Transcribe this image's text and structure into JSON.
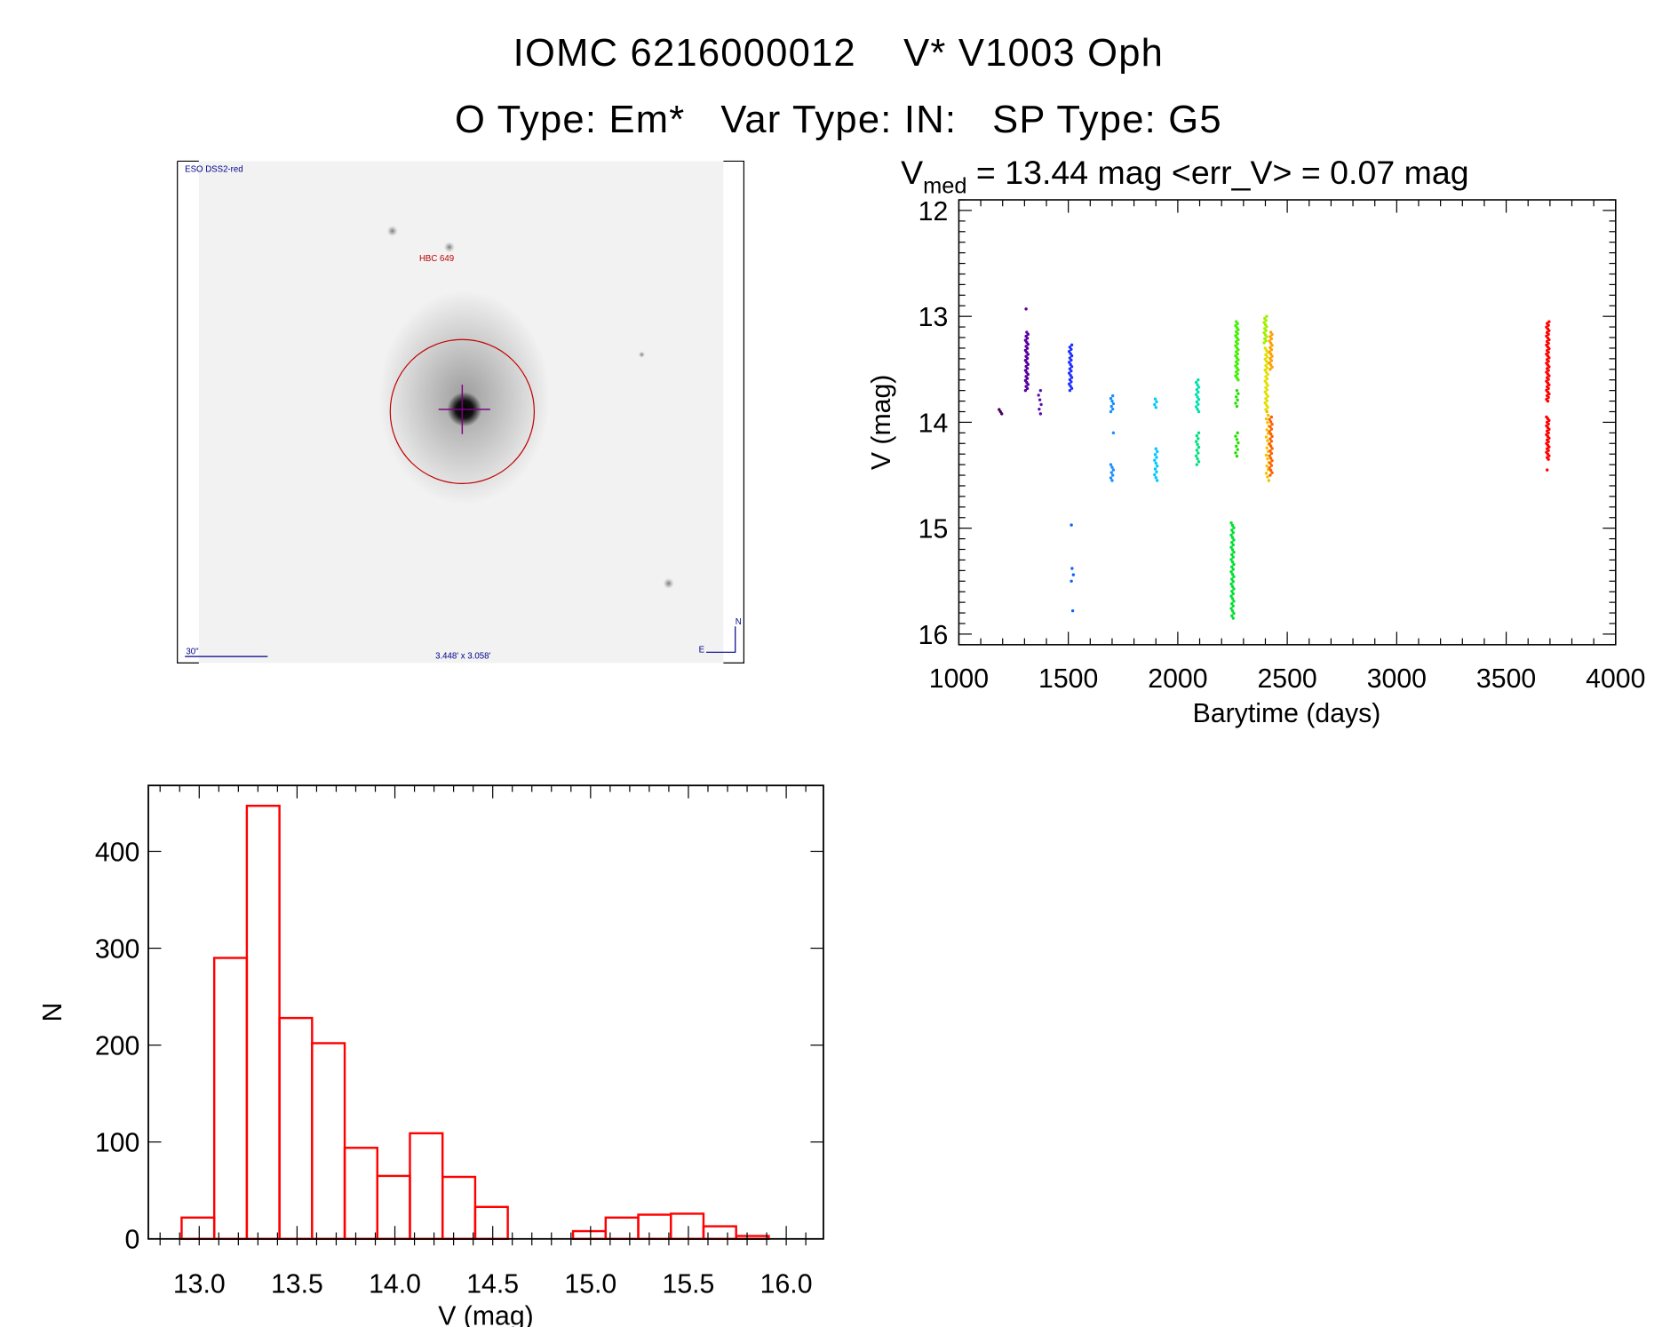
{
  "header": {
    "title_line1": "IOMC 6216000012    V* V1003 Oph",
    "title_line2": "O Type: Em*   Var Type: IN:   SP Type: G5"
  },
  "image_panel": {
    "survey_label": "ESO DSS2-red",
    "object_label": "HBC 649",
    "scale_label": "30\"",
    "field_size_label": "3.448' x 3.058'",
    "north_label": "N",
    "east_label": "E",
    "label_color": "#00008b",
    "marker_color": "#c00000"
  },
  "chart_data": [
    {
      "type": "scatter",
      "title_prefix": "V",
      "title_subscript": "med",
      "title_rest": " = 13.44 mag <err_V> = 0.07 mag",
      "xlabel": "Barytime (days)",
      "ylabel": "V (mag)",
      "xlim": [
        1000,
        4000
      ],
      "ylim": [
        16.1,
        11.9
      ],
      "y_inverted": true,
      "xticks": [
        1000,
        1500,
        2000,
        2500,
        3000,
        3500,
        4000
      ],
      "yticks": [
        12,
        13,
        14,
        15,
        16
      ],
      "grid": false,
      "segments": [
        {
          "t": 1190,
          "v_from": 13.88,
          "v_to": 13.92,
          "n": 3,
          "color": "#4b0060"
        },
        {
          "t": 1310,
          "v_from": 12.93,
          "v_to": 12.93,
          "n": 1,
          "color": "#5a00a0"
        },
        {
          "t": 1310,
          "v_from": 13.15,
          "v_to": 13.7,
          "n": 30,
          "color": "#5a00a0"
        },
        {
          "t": 1370,
          "v_from": 13.7,
          "v_to": 13.92,
          "n": 6,
          "color": "#5a10b0"
        },
        {
          "t": 1510,
          "v_from": 13.27,
          "v_to": 13.7,
          "n": 22,
          "color": "#2030ff"
        },
        {
          "t": 1520,
          "v_from": 14.97,
          "v_to": 14.97,
          "n": 1,
          "color": "#1060ff"
        },
        {
          "t": 1520,
          "v_from": 15.38,
          "v_to": 15.5,
          "n": 3,
          "color": "#1060ff"
        },
        {
          "t": 1520,
          "v_from": 15.78,
          "v_to": 15.78,
          "n": 1,
          "color": "#1060ff"
        },
        {
          "t": 1700,
          "v_from": 13.75,
          "v_to": 13.9,
          "n": 7,
          "color": "#1890ff"
        },
        {
          "t": 1700,
          "v_from": 14.1,
          "v_to": 14.1,
          "n": 1,
          "color": "#1890ff"
        },
        {
          "t": 1700,
          "v_from": 14.4,
          "v_to": 14.55,
          "n": 7,
          "color": "#1890ff"
        },
        {
          "t": 1900,
          "v_from": 13.78,
          "v_to": 13.86,
          "n": 4,
          "color": "#00c8ff"
        },
        {
          "t": 1900,
          "v_from": 14.25,
          "v_to": 14.55,
          "n": 12,
          "color": "#00c8ff"
        },
        {
          "t": 2090,
          "v_from": 13.6,
          "v_to": 13.9,
          "n": 14,
          "color": "#00e0b0"
        },
        {
          "t": 2090,
          "v_from": 14.1,
          "v_to": 14.4,
          "n": 12,
          "color": "#00e080"
        },
        {
          "t": 2250,
          "v_from": 14.95,
          "v_to": 15.85,
          "n": 40,
          "color": "#00e030"
        },
        {
          "t": 2270,
          "v_from": 13.05,
          "v_to": 13.6,
          "n": 30,
          "color": "#40f000"
        },
        {
          "t": 2270,
          "v_from": 13.7,
          "v_to": 13.85,
          "n": 6,
          "color": "#20e000"
        },
        {
          "t": 2270,
          "v_from": 14.1,
          "v_to": 14.32,
          "n": 8,
          "color": "#20e000"
        },
        {
          "t": 2400,
          "v_from": 13.0,
          "v_to": 13.25,
          "n": 14,
          "color": "#a0f000"
        },
        {
          "t": 2405,
          "v_from": 13.3,
          "v_to": 13.9,
          "n": 30,
          "color": "#e0e000"
        },
        {
          "t": 2410,
          "v_from": 13.9,
          "v_to": 14.55,
          "n": 20,
          "color": "#f0c000"
        },
        {
          "t": 2425,
          "v_from": 13.15,
          "v_to": 13.5,
          "n": 18,
          "color": "#ffa000"
        },
        {
          "t": 2425,
          "v_from": 13.95,
          "v_to": 14.5,
          "n": 25,
          "color": "#ff6000"
        },
        {
          "t": 3690,
          "v_from": 13.05,
          "v_to": 13.8,
          "n": 45,
          "color": "#ff0000"
        },
        {
          "t": 3690,
          "v_from": 13.95,
          "v_to": 14.35,
          "n": 25,
          "color": "#ff0000"
        },
        {
          "t": 3690,
          "v_from": 14.45,
          "v_to": 14.45,
          "n": 1,
          "color": "#ff0000"
        }
      ]
    },
    {
      "type": "bar",
      "subtype": "histogram",
      "xlabel": "V (mag)",
      "ylabel": "N",
      "xlim": [
        12.74,
        16.19
      ],
      "ylim": [
        0,
        468
      ],
      "xticks": [
        "13.0",
        "13.5",
        "14.0",
        "14.5",
        "15.0",
        "15.5",
        "16.0"
      ],
      "yticks": [
        "0",
        "100",
        "200",
        "300",
        "400"
      ],
      "bin_start": 12.91,
      "bin_width": 0.1667,
      "values": [
        22,
        290,
        447,
        228,
        202,
        94,
        65,
        109,
        64,
        33,
        0,
        0,
        8,
        22,
        25,
        26,
        13,
        3
      ],
      "color": "#ff0000",
      "grid": false
    }
  ]
}
